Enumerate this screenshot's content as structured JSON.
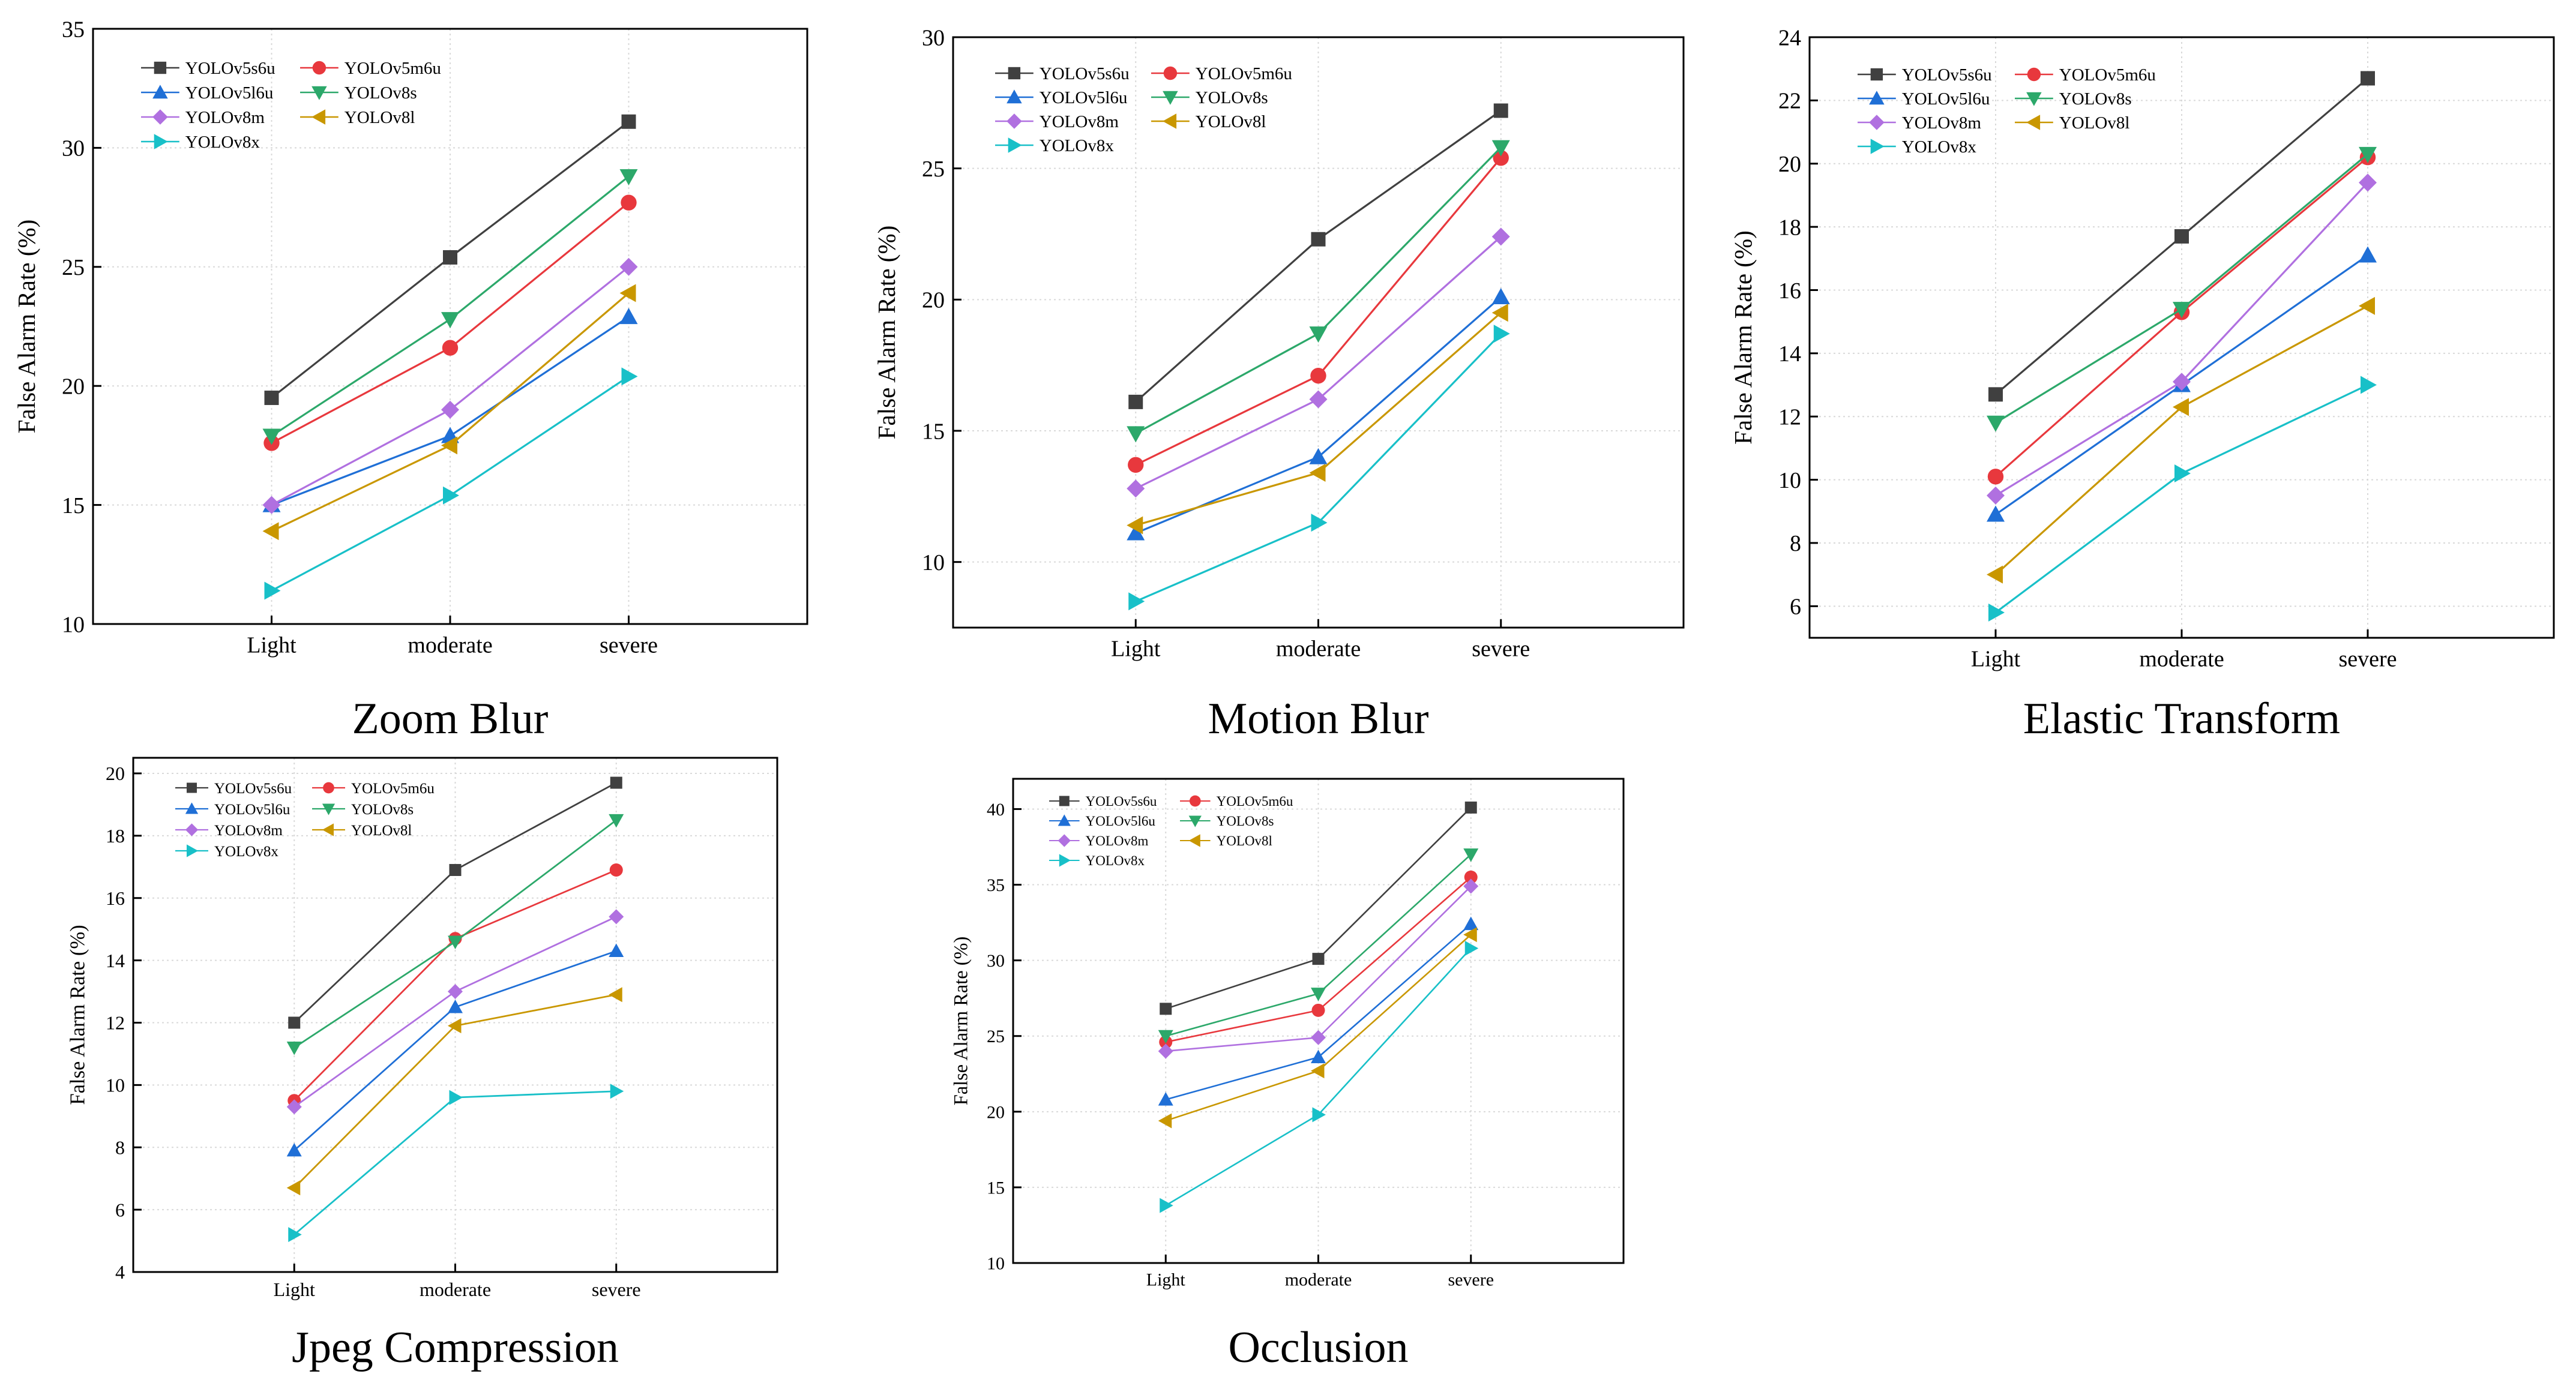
{
  "figure": {
    "categories": [
      "Light",
      "moderate",
      "severe"
    ],
    "ylabel": "False Alarm Rate (%)",
    "series_names": [
      "YOLOv5s6u",
      "YOLOv5m6u",
      "YOLOv5l6u",
      "YOLOv8s",
      "YOLOv8m",
      "YOLOv8l",
      "YOLOv8x"
    ]
  },
  "colors": {
    "YOLOv5s6u": "#404040",
    "YOLOv5m6u": "#e8383d",
    "YOLOv5l6u": "#1f6fd6",
    "YOLOv8s": "#2ca86a",
    "YOLOv8m": "#b070e0",
    "YOLOv8l": "#c99700",
    "YOLOv8x": "#18c0c8"
  },
  "markers": {
    "YOLOv5s6u": "square",
    "YOLOv5m6u": "circle",
    "YOLOv5l6u": "triangle-up",
    "YOLOv8s": "triangle-down",
    "YOLOv8m": "diamond",
    "YOLOv8l": "triangle-left",
    "YOLOv8x": "triangle-right"
  },
  "chart_data": [
    {
      "type": "line",
      "title": "Zoom Blur",
      "xlabel": "",
      "ylabel": "False Alarm Rate (%)",
      "categories": [
        "Light",
        "moderate",
        "severe"
      ],
      "ylim": [
        10,
        35
      ],
      "yticks": [
        10,
        15,
        20,
        25,
        30,
        35
      ],
      "grid": true,
      "legend": "top-left",
      "series": [
        {
          "name": "YOLOv5s6u",
          "values": [
            19.5,
            25.4,
            31.1
          ]
        },
        {
          "name": "YOLOv5m6u",
          "values": [
            17.6,
            21.6,
            27.7
          ]
        },
        {
          "name": "YOLOv5l6u",
          "values": [
            15.0,
            17.9,
            22.9
          ]
        },
        {
          "name": "YOLOv8s",
          "values": [
            17.9,
            22.8,
            28.8
          ]
        },
        {
          "name": "YOLOv8m",
          "values": [
            15.0,
            19.0,
            25.0
          ]
        },
        {
          "name": "YOLOv8l",
          "values": [
            13.9,
            17.5,
            23.9
          ]
        },
        {
          "name": "YOLOv8x",
          "values": [
            11.4,
            15.4,
            20.4
          ]
        }
      ]
    },
    {
      "type": "line",
      "title": "Motion Blur",
      "xlabel": "",
      "ylabel": "False Alarm Rate (%)",
      "categories": [
        "Light",
        "moderate",
        "severe"
      ],
      "ylim": [
        7.5,
        30
      ],
      "yticks": [
        10,
        15,
        20,
        25,
        30
      ],
      "grid": true,
      "legend": "top-left",
      "series": [
        {
          "name": "YOLOv5s6u",
          "values": [
            16.1,
            22.3,
            27.2
          ]
        },
        {
          "name": "YOLOv5m6u",
          "values": [
            13.7,
            17.1,
            25.4
          ]
        },
        {
          "name": "YOLOv5l6u",
          "values": [
            11.1,
            14.0,
            20.1
          ]
        },
        {
          "name": "YOLOv8s",
          "values": [
            14.9,
            18.7,
            25.8
          ]
        },
        {
          "name": "YOLOv8m",
          "values": [
            12.8,
            16.2,
            22.4
          ]
        },
        {
          "name": "YOLOv8l",
          "values": [
            11.4,
            13.4,
            19.5
          ]
        },
        {
          "name": "YOLOv8x",
          "values": [
            8.5,
            11.5,
            18.7
          ]
        }
      ]
    },
    {
      "type": "line",
      "title": "Elastic Transform",
      "xlabel": "",
      "ylabel": "False Alarm Rate (%)",
      "categories": [
        "Light",
        "moderate",
        "severe"
      ],
      "ylim": [
        5,
        24
      ],
      "yticks": [
        6,
        8,
        10,
        12,
        14,
        16,
        18,
        20,
        22,
        24
      ],
      "grid": true,
      "legend": "top-left",
      "series": [
        {
          "name": "YOLOv5s6u",
          "values": [
            12.7,
            17.7,
            22.7
          ]
        },
        {
          "name": "YOLOv5m6u",
          "values": [
            10.1,
            15.3,
            20.2
          ]
        },
        {
          "name": "YOLOv5l6u",
          "values": [
            8.9,
            13.0,
            17.1
          ]
        },
        {
          "name": "YOLOv8s",
          "values": [
            11.8,
            15.4,
            20.3
          ]
        },
        {
          "name": "YOLOv8m",
          "values": [
            9.5,
            13.1,
            19.4
          ]
        },
        {
          "name": "YOLOv8l",
          "values": [
            7.0,
            12.3,
            15.5
          ]
        },
        {
          "name": "YOLOv8x",
          "values": [
            5.8,
            10.2,
            13.0
          ]
        }
      ]
    },
    {
      "type": "line",
      "title": "Jpeg Compression",
      "xlabel": "",
      "ylabel": "False Alarm Rate (%)",
      "categories": [
        "Light",
        "moderate",
        "severe"
      ],
      "ylim": [
        4,
        20.5
      ],
      "yticks": [
        4,
        6,
        8,
        10,
        12,
        14,
        16,
        18,
        20
      ],
      "grid": true,
      "legend": "top-left",
      "series": [
        {
          "name": "YOLOv5s6u",
          "values": [
            12.0,
            16.9,
            19.7
          ]
        },
        {
          "name": "YOLOv5m6u",
          "values": [
            9.5,
            14.7,
            16.9
          ]
        },
        {
          "name": "YOLOv5l6u",
          "values": [
            7.9,
            12.5,
            14.3
          ]
        },
        {
          "name": "YOLOv8s",
          "values": [
            11.2,
            14.6,
            18.5
          ]
        },
        {
          "name": "YOLOv8m",
          "values": [
            9.3,
            13.0,
            15.4
          ]
        },
        {
          "name": "YOLOv8l",
          "values": [
            6.7,
            11.9,
            12.9
          ]
        },
        {
          "name": "YOLOv8x",
          "values": [
            5.2,
            9.6,
            9.8
          ]
        }
      ]
    },
    {
      "type": "line",
      "title": "Occlusion",
      "xlabel": "",
      "ylabel": "False Alarm Rate (%)",
      "categories": [
        "Light",
        "moderate",
        "severe"
      ],
      "ylim": [
        10,
        42
      ],
      "yticks": [
        10,
        15,
        20,
        25,
        30,
        35,
        40
      ],
      "grid": true,
      "legend": "top-left",
      "series": [
        {
          "name": "YOLOv5s6u",
          "values": [
            26.8,
            30.1,
            40.1
          ]
        },
        {
          "name": "YOLOv5m6u",
          "values": [
            24.6,
            26.7,
            35.5
          ]
        },
        {
          "name": "YOLOv5l6u",
          "values": [
            20.8,
            23.6,
            32.4
          ]
        },
        {
          "name": "YOLOv8s",
          "values": [
            25.0,
            27.8,
            37.0
          ]
        },
        {
          "name": "YOLOv8m",
          "values": [
            24.0,
            24.9,
            34.9
          ]
        },
        {
          "name": "YOLOv8l",
          "values": [
            19.4,
            22.7,
            31.7
          ]
        },
        {
          "name": "YOLOv8x",
          "values": [
            13.8,
            19.8,
            30.8
          ]
        }
      ]
    }
  ]
}
